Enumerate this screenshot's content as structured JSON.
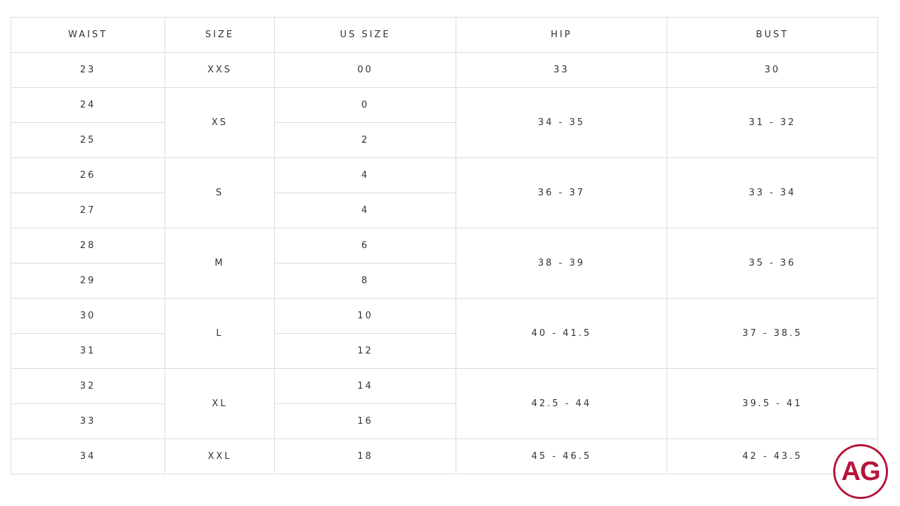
{
  "headers": [
    "WAIST",
    "SIZE",
    "US SIZE",
    "HIP",
    "BUST"
  ],
  "groups": [
    {
      "size": "XXS",
      "hip": "33",
      "bust": "30",
      "rows": [
        {
          "waist": "23",
          "us": "00"
        }
      ]
    },
    {
      "size": "XS",
      "hip": "34 - 35",
      "bust": "31 - 32",
      "rows": [
        {
          "waist": "24",
          "us": "0"
        },
        {
          "waist": "25",
          "us": "2"
        }
      ]
    },
    {
      "size": "S",
      "hip": "36 - 37",
      "bust": "33 - 34",
      "rows": [
        {
          "waist": "26",
          "us": "4"
        },
        {
          "waist": "27",
          "us": "4"
        }
      ]
    },
    {
      "size": "M",
      "hip": "38 - 39",
      "bust": "35 - 36",
      "rows": [
        {
          "waist": "28",
          "us": "6"
        },
        {
          "waist": "29",
          "us": "8"
        }
      ]
    },
    {
      "size": "L",
      "hip": "40 - 41.5",
      "bust": "37 - 38.5",
      "rows": [
        {
          "waist": "30",
          "us": "10"
        },
        {
          "waist": "31",
          "us": "12"
        }
      ]
    },
    {
      "size": "XL",
      "hip": "42.5 - 44",
      "bust": "39.5 - 41",
      "rows": [
        {
          "waist": "32",
          "us": "14"
        },
        {
          "waist": "33",
          "us": "16"
        }
      ]
    },
    {
      "size": "XXL",
      "hip": "45 - 46.5",
      "bust": "42 - 43.5",
      "rows": [
        {
          "waist": "34",
          "us": "18"
        }
      ]
    }
  ],
  "logo": {
    "text": "AG",
    "color": "#b5153a"
  }
}
